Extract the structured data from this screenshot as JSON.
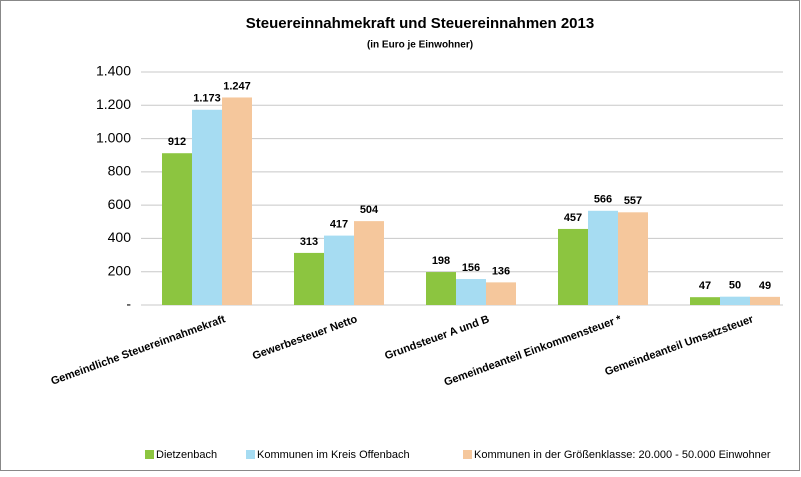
{
  "chart_data": {
    "type": "bar",
    "title": "Steuereinnahmekraft und Steuereinnahmen 2013",
    "subtitle": "(in Euro je Einwohner)",
    "categories": [
      "Gemeindliche Steuereinnahmekraft",
      "Gewerbesteuer Netto",
      "Grundsteuer A und B",
      "Gemeindeanteil Einkommensteuer *",
      "Gemeindeanteil Umsatzsteuer"
    ],
    "series": [
      {
        "name": "Dietzenbach",
        "color": "#8cc540",
        "values": [
          912,
          313,
          198,
          457,
          47
        ],
        "value_labels": [
          "912",
          "313",
          "198",
          "457",
          "47"
        ]
      },
      {
        "name": "Kommunen im Kreis Offenbach",
        "color": "#a6dcf2",
        "values": [
          1173,
          417,
          156,
          566,
          50
        ],
        "value_labels": [
          "1.173",
          "417",
          "156",
          "566",
          "50"
        ]
      },
      {
        "name": "Kommunen in der Größenklasse: 20.000 - 50.000 Einwohner",
        "color": "#f5c79c",
        "values": [
          1247,
          504,
          136,
          557,
          49
        ],
        "value_labels": [
          "1.247",
          "504",
          "136",
          "557",
          "49"
        ]
      }
    ],
    "ylim": [
      0,
      1400
    ],
    "yticks": [
      {
        "value": 0,
        "label": "-"
      },
      200,
      400,
      600,
      800,
      {
        "value": 1000,
        "label": "1.000"
      },
      {
        "value": 1200,
        "label": "1.200"
      },
      {
        "value": 1400,
        "label": "1.400"
      }
    ],
    "grid": true,
    "legend": "bottom"
  }
}
